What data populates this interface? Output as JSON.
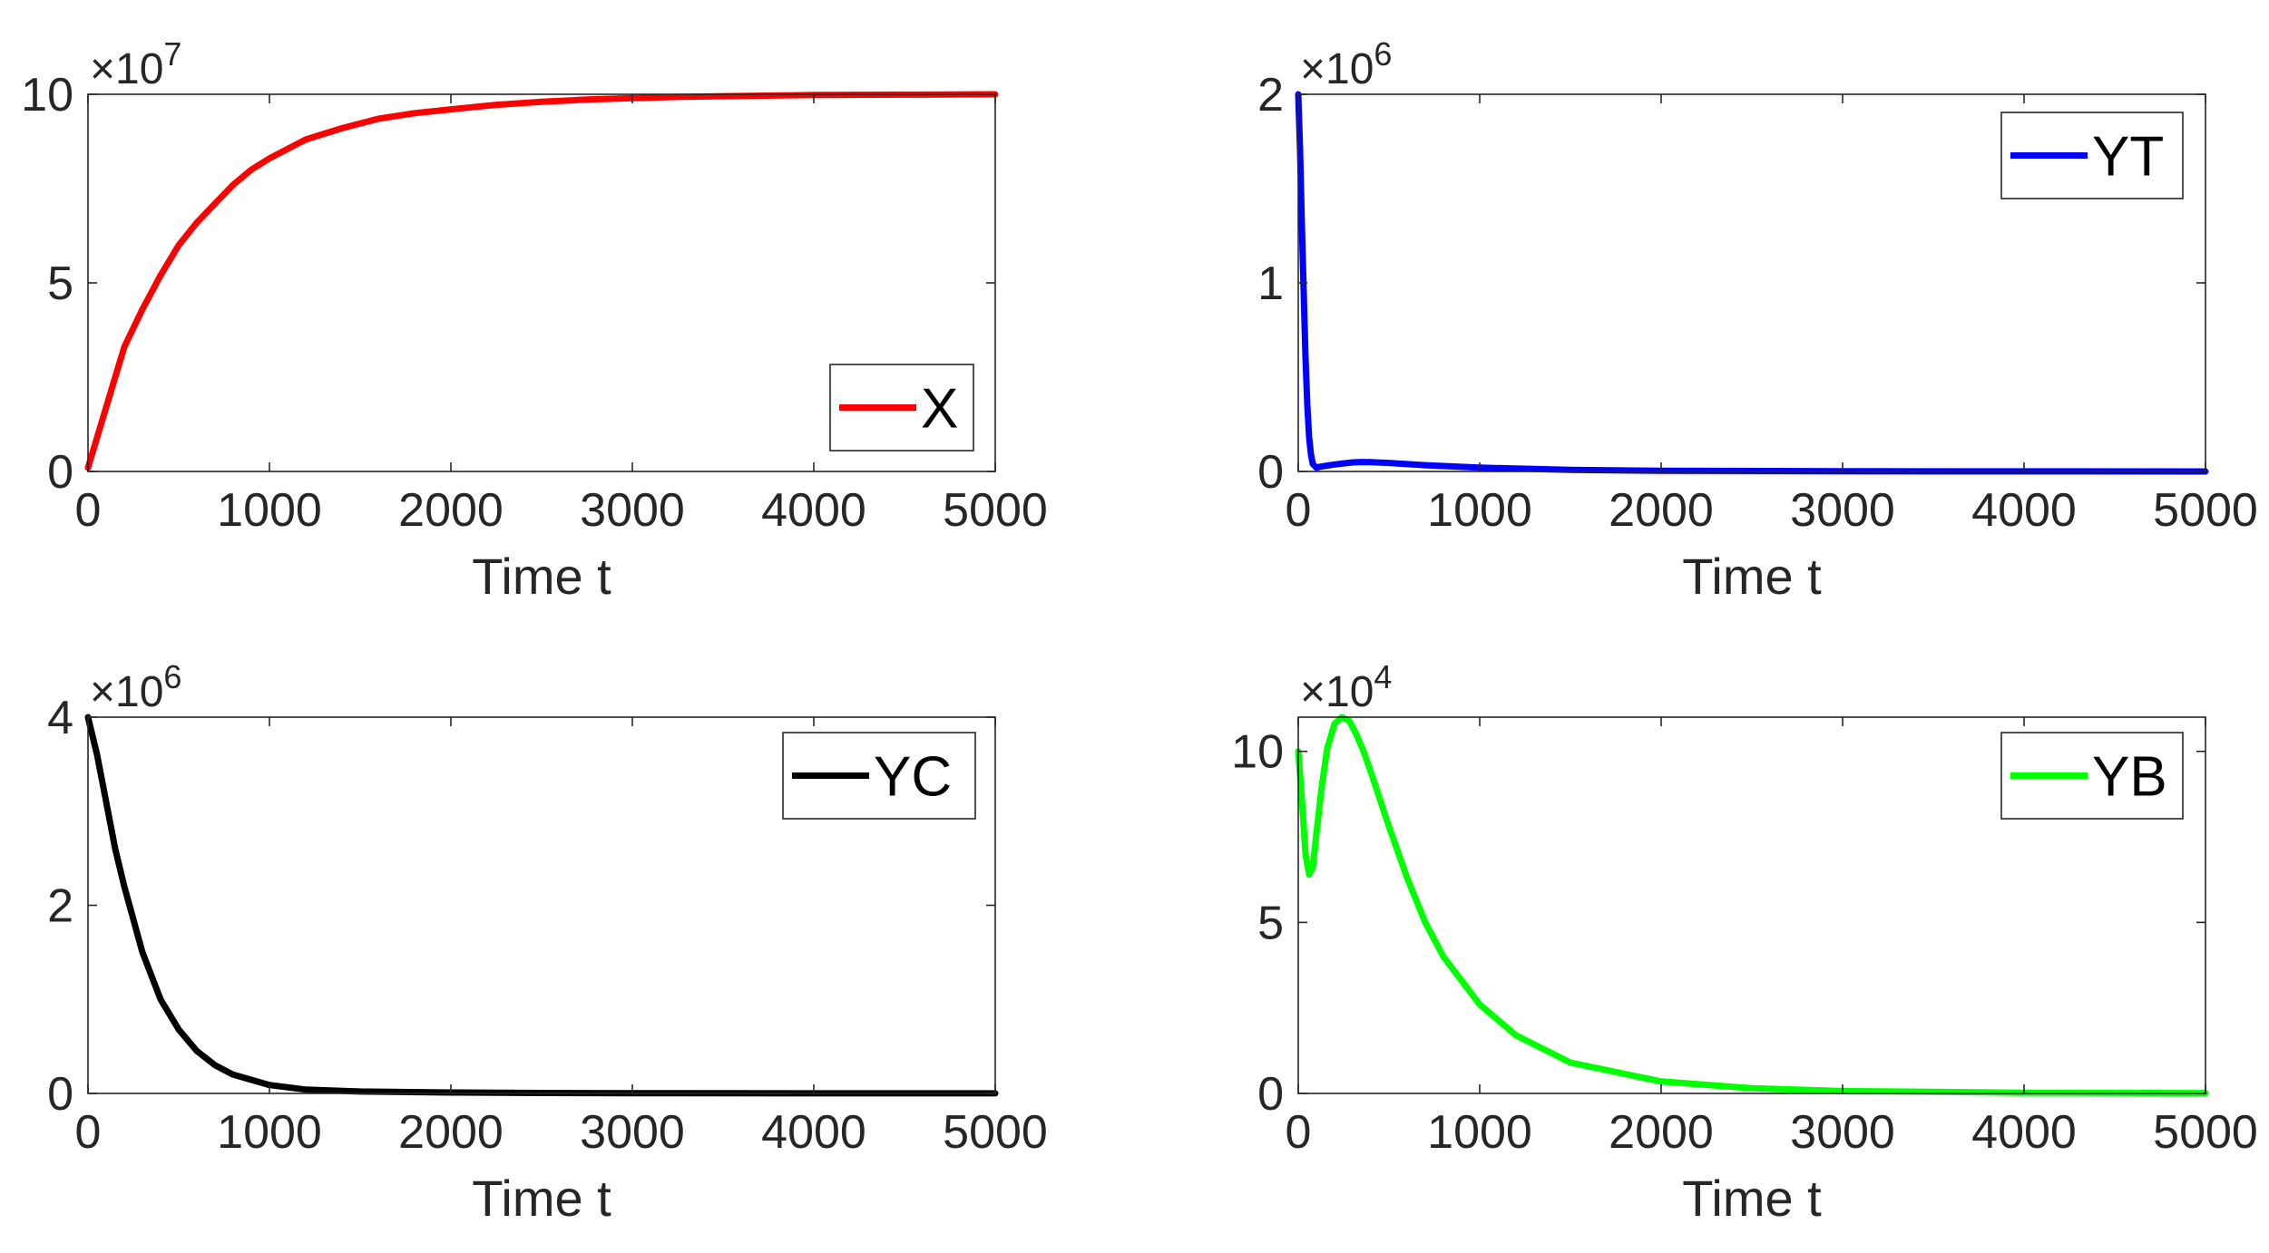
{
  "chart_data": [
    {
      "type": "line",
      "title": "",
      "xlabel": "Time t",
      "ylabel": "",
      "xlim": [
        0,
        5000
      ],
      "ylim": [
        0,
        10
      ],
      "exponent_label": "×10",
      "exponent_power": "7",
      "x_ticks": [
        "0",
        "1000",
        "2000",
        "3000",
        "4000",
        "5000"
      ],
      "y_ticks": [
        "0",
        "5",
        "10"
      ],
      "legend_position": "bottom-right",
      "series": [
        {
          "name": "X",
          "color": "#ff0000",
          "x": [
            0,
            100,
            200,
            300,
            400,
            500,
            600,
            700,
            800,
            900,
            1000,
            1200,
            1400,
            1600,
            1800,
            2000,
            2250,
            2500,
            2750,
            3000,
            3250,
            3500,
            4000,
            4500,
            5000
          ],
          "values": [
            0.1,
            1.7,
            3.3,
            4.3,
            5.2,
            6.0,
            6.6,
            7.1,
            7.6,
            8.0,
            8.3,
            8.8,
            9.1,
            9.35,
            9.5,
            9.6,
            9.72,
            9.8,
            9.86,
            9.9,
            9.93,
            9.95,
            9.98,
            9.99,
            10.0
          ]
        }
      ]
    },
    {
      "type": "line",
      "title": "",
      "xlabel": "Time t",
      "ylabel": "",
      "xlim": [
        0,
        5000
      ],
      "ylim": [
        0,
        2
      ],
      "exponent_label": "×10",
      "exponent_power": "6",
      "x_ticks": [
        "0",
        "1000",
        "2000",
        "3000",
        "4000",
        "5000"
      ],
      "y_ticks": [
        "0",
        "1",
        "2"
      ],
      "legend_position": "top-right",
      "series": [
        {
          "name": "YT",
          "color": "#0000ff",
          "x": [
            0,
            10,
            20,
            30,
            40,
            50,
            60,
            70,
            80,
            100,
            120,
            150,
            200,
            250,
            300,
            350,
            400,
            500,
            700,
            1000,
            1500,
            2000,
            3000,
            4000,
            5000
          ],
          "values": [
            2.0,
            1.7,
            1.3,
            0.95,
            0.6,
            0.35,
            0.18,
            0.09,
            0.04,
            0.02,
            0.025,
            0.03,
            0.037,
            0.043,
            0.048,
            0.05,
            0.049,
            0.045,
            0.033,
            0.02,
            0.008,
            0.004,
            0.001,
            0.0005,
            0.0002
          ]
        }
      ]
    },
    {
      "type": "line",
      "title": "",
      "xlabel": "Time t",
      "ylabel": "",
      "xlim": [
        0,
        5000
      ],
      "ylim": [
        0,
        4
      ],
      "exponent_label": "×10",
      "exponent_power": "6",
      "x_ticks": [
        "0",
        "1000",
        "2000",
        "3000",
        "4000",
        "5000"
      ],
      "y_ticks": [
        "0",
        "2",
        "4"
      ],
      "legend_position": "top-right",
      "series": [
        {
          "name": "YC",
          "color": "#000000",
          "x": [
            0,
            50,
            100,
            150,
            200,
            250,
            300,
            400,
            500,
            600,
            700,
            800,
            1000,
            1200,
            1500,
            2000,
            2500,
            3000,
            4000,
            5000
          ],
          "values": [
            4.0,
            3.6,
            3.1,
            2.6,
            2.2,
            1.85,
            1.5,
            1.0,
            0.68,
            0.45,
            0.3,
            0.2,
            0.09,
            0.04,
            0.02,
            0.01,
            0.005,
            0.003,
            0.001,
            0.0005
          ]
        }
      ]
    },
    {
      "type": "line",
      "title": "",
      "xlabel": "Time t",
      "ylabel": "",
      "xlim": [
        0,
        5000
      ],
      "ylim": [
        0,
        11
      ],
      "exponent_label": "×10",
      "exponent_power": "4",
      "x_ticks": [
        "0",
        "1000",
        "2000",
        "3000",
        "4000",
        "5000"
      ],
      "y_ticks": [
        "0",
        "5",
        "10"
      ],
      "legend_position": "top-right",
      "series": [
        {
          "name": "YB",
          "color": "#00ff00",
          "x": [
            0,
            20,
            40,
            60,
            80,
            100,
            130,
            160,
            200,
            240,
            280,
            320,
            360,
            400,
            450,
            500,
            600,
            700,
            800,
            1000,
            1200,
            1500,
            2000,
            2500,
            3000,
            4000,
            5000
          ],
          "values": [
            10.0,
            8.6,
            7.0,
            6.4,
            6.6,
            7.6,
            9.0,
            10.1,
            10.8,
            11.0,
            10.9,
            10.5,
            10.0,
            9.4,
            8.6,
            7.8,
            6.3,
            5.0,
            4.0,
            2.6,
            1.7,
            0.9,
            0.35,
            0.15,
            0.07,
            0.02,
            0.01
          ]
        }
      ]
    }
  ]
}
